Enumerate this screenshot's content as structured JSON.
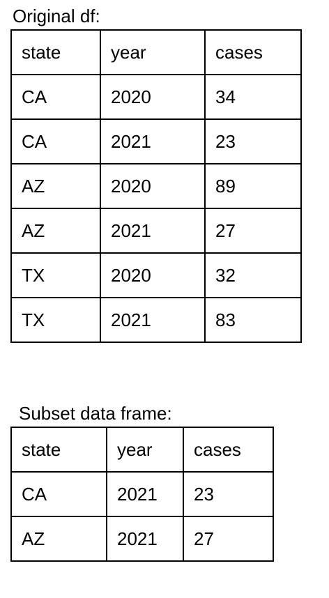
{
  "original": {
    "caption": "Original df:",
    "headers": [
      "state",
      "year",
      "cases"
    ],
    "rows": [
      [
        "CA",
        "2020",
        "34"
      ],
      [
        "CA",
        "2021",
        "23"
      ],
      [
        "AZ",
        "2020",
        "89"
      ],
      [
        "AZ",
        "2021",
        "27"
      ],
      [
        "TX",
        "2020",
        "32"
      ],
      [
        "TX",
        "2021",
        "83"
      ]
    ]
  },
  "subset": {
    "caption": "Subset data frame:",
    "headers": [
      "state",
      "year",
      "cases"
    ],
    "rows": [
      [
        "CA",
        "2021",
        "23"
      ],
      [
        "AZ",
        "2021",
        "27"
      ]
    ]
  }
}
